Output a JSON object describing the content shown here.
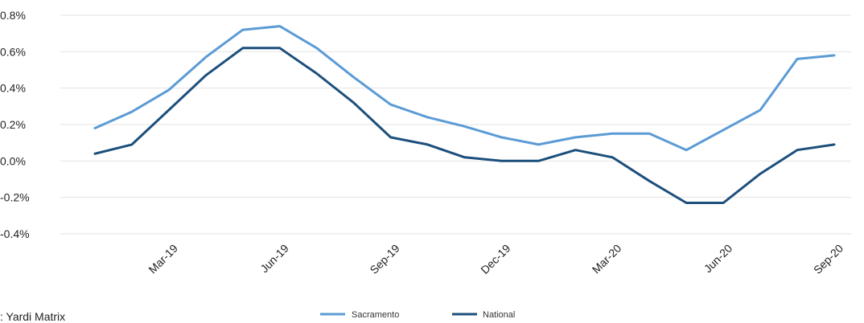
{
  "chart_data": {
    "type": "line",
    "x": [
      "Jan-19",
      "Feb-19",
      "Mar-19",
      "Apr-19",
      "May-19",
      "Jun-19",
      "Jul-19",
      "Aug-19",
      "Sep-19",
      "Oct-19",
      "Nov-19",
      "Dec-19",
      "Jan-20",
      "Feb-20",
      "Mar-20",
      "Apr-20",
      "May-20",
      "Jun-20",
      "Jul-20",
      "Aug-20",
      "Sep-20"
    ],
    "x_tick_labels": [
      "Mar-19",
      "Jun-19",
      "Sep-19",
      "Dec-19",
      "Mar-20",
      "Jun-20",
      "Sep-20"
    ],
    "x_tick_index": [
      2,
      5,
      8,
      11,
      14,
      17,
      20
    ],
    "series": [
      {
        "name": "Sacramento",
        "color": "#5b9bd5",
        "values": [
          0.18,
          0.27,
          0.39,
          0.57,
          0.72,
          0.74,
          0.62,
          0.46,
          0.31,
          0.24,
          0.19,
          0.13,
          0.09,
          0.13,
          0.15,
          0.15,
          0.06,
          0.17,
          0.28,
          0.56,
          0.58
        ]
      },
      {
        "name": "National",
        "color": "#1c4f7c",
        "values": [
          0.04,
          0.09,
          0.28,
          0.47,
          0.62,
          0.62,
          0.48,
          0.32,
          0.13,
          0.09,
          0.02,
          0.0,
          0.0,
          0.06,
          0.02,
          -0.11,
          -0.23,
          -0.23,
          -0.07,
          0.06,
          0.09
        ]
      }
    ],
    "yticks": [
      0.8,
      0.6,
      0.4,
      0.2,
      0.0,
      -0.2,
      -0.4
    ],
    "ytick_labels": [
      "0.8%",
      "0.6%",
      "0.4%",
      "0.2%",
      "0.0%",
      "-0.2%",
      "-0.4%"
    ],
    "ylim": [
      -0.4,
      0.8
    ],
    "grid": true,
    "legend_position": "bottom-center",
    "title": "",
    "xlabel": "",
    "ylabel": ""
  },
  "source": ": Yardi Matrix"
}
